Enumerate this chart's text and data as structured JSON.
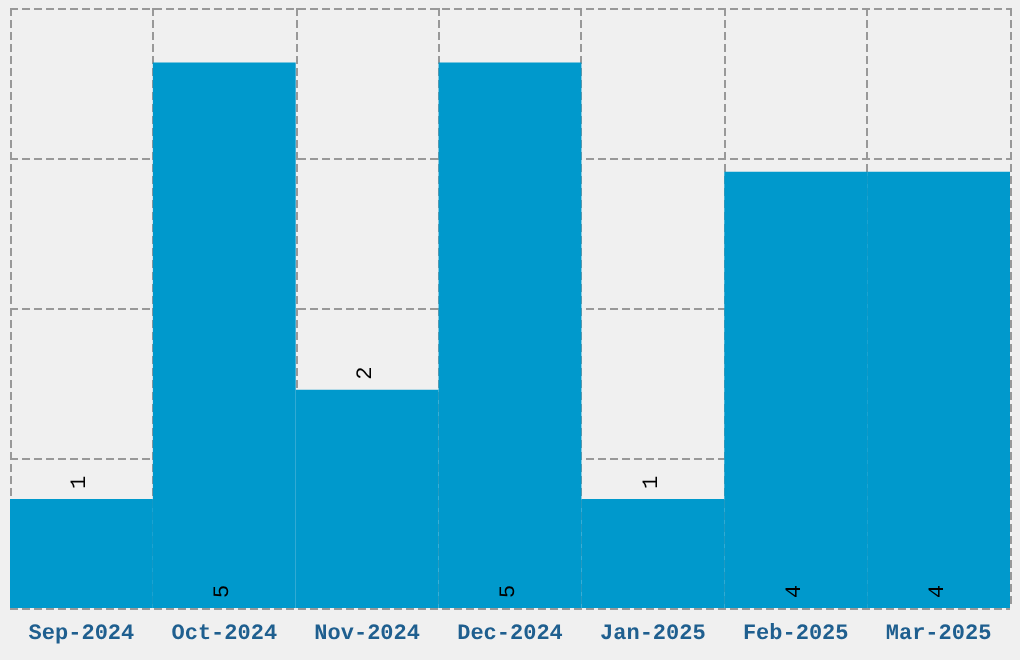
{
  "chart_data": {
    "type": "bar",
    "categories": [
      "Sep-2024",
      "Oct-2024",
      "Nov-2024",
      "Dec-2024",
      "Jan-2025",
      "Feb-2025",
      "Mar-2025"
    ],
    "values": [
      1,
      5,
      2,
      5,
      1,
      4,
      4
    ],
    "color": "#0099cc",
    "ylim": [
      0,
      5.5
    ],
    "yticks": [
      {
        "value": 0,
        "label": null
      },
      {
        "value": 1.375,
        "label": null
      },
      {
        "value": 2.75,
        "label": null
      },
      {
        "value": 4.125,
        "label": null
      },
      {
        "value": 5.5,
        "label": null
      }
    ],
    "tick_labels": "x",
    "grid": true,
    "data_labels": true
  }
}
